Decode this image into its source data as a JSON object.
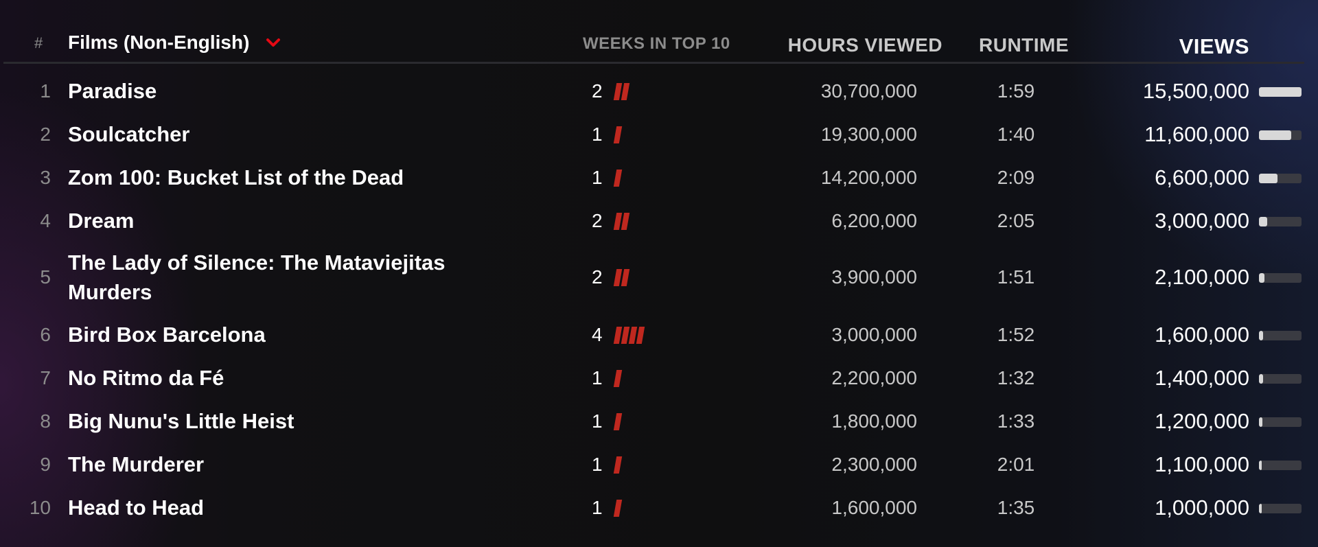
{
  "header": {
    "hash_label": "#",
    "category_label": "Films (Non-English)",
    "chevron_icon": "chevron-down-icon",
    "weeks_label": "WEEKS IN TOP 10",
    "hours_label": "HOURS VIEWED",
    "runtime_label": "RUNTIME",
    "views_label": "VIEWS"
  },
  "colors": {
    "accent_red": "#c0281f",
    "bar_fill": "#d8d8d8",
    "bar_track": "#3a3b42"
  },
  "rows": [
    {
      "rank": "1",
      "title": "Paradise",
      "weeks": "2",
      "hours": "30,700,000",
      "runtime": "1:59",
      "views": "15,500,000",
      "views_fraction": 1.0
    },
    {
      "rank": "2",
      "title": "Soulcatcher",
      "weeks": "1",
      "hours": "19,300,000",
      "runtime": "1:40",
      "views": "11,600,000",
      "views_fraction": 0.75
    },
    {
      "rank": "3",
      "title": "Zom 100: Bucket List of the Dead",
      "weeks": "1",
      "hours": "14,200,000",
      "runtime": "2:09",
      "views": "6,600,000",
      "views_fraction": 0.43
    },
    {
      "rank": "4",
      "title": "Dream",
      "weeks": "2",
      "hours": "6,200,000",
      "runtime": "2:05",
      "views": "3,000,000",
      "views_fraction": 0.19
    },
    {
      "rank": "5",
      "title": "The Lady of Silence: The Mataviejitas Murders",
      "weeks": "2",
      "hours": "3,900,000",
      "runtime": "1:51",
      "views": "2,100,000",
      "views_fraction": 0.135
    },
    {
      "rank": "6",
      "title": "Bird Box Barcelona",
      "weeks": "4",
      "hours": "3,000,000",
      "runtime": "1:52",
      "views": "1,600,000",
      "views_fraction": 0.103
    },
    {
      "rank": "7",
      "title": "No Ritmo da Fé",
      "weeks": "1",
      "hours": "2,200,000",
      "runtime": "1:32",
      "views": "1,400,000",
      "views_fraction": 0.09
    },
    {
      "rank": "8",
      "title": "Big Nunu's Little Heist",
      "weeks": "1",
      "hours": "1,800,000",
      "runtime": "1:33",
      "views": "1,200,000",
      "views_fraction": 0.077
    },
    {
      "rank": "9",
      "title": "The Murderer",
      "weeks": "1",
      "hours": "2,300,000",
      "runtime": "2:01",
      "views": "1,100,000",
      "views_fraction": 0.071
    },
    {
      "rank": "10",
      "title": "Head to Head",
      "weeks": "1",
      "hours": "1,600,000",
      "runtime": "1:35",
      "views": "1,000,000",
      "views_fraction": 0.065
    }
  ]
}
